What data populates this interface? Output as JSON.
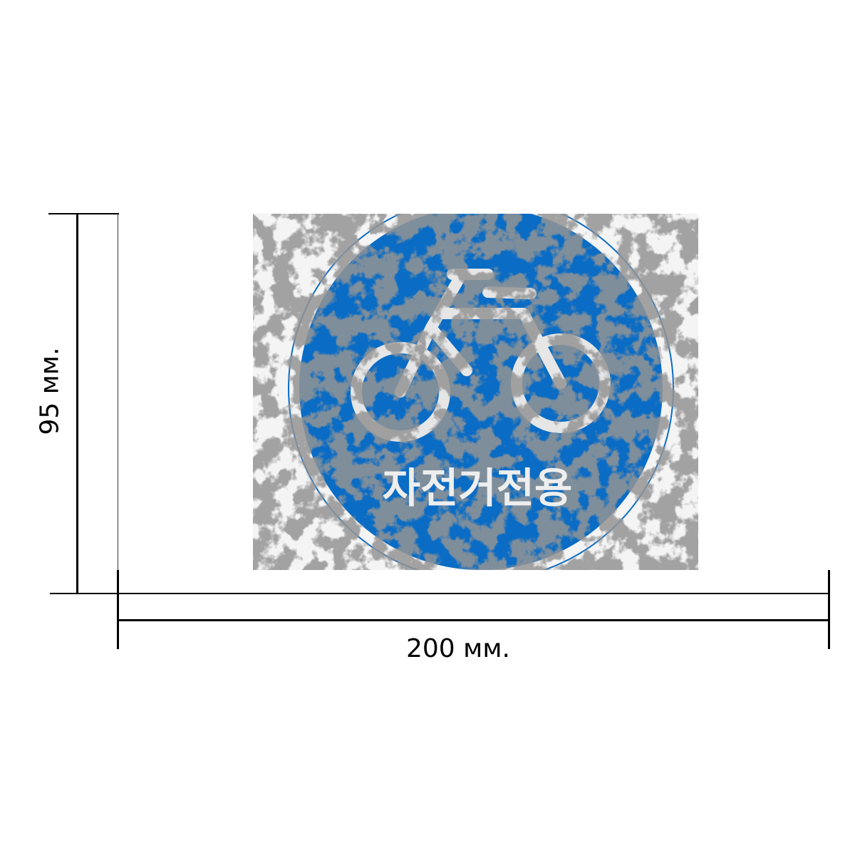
{
  "dimensions": {
    "height_label": "95 мм.",
    "width_label": "200 мм."
  },
  "sign": {
    "text": "자전거전용",
    "icon": "bicycle-icon",
    "colors": {
      "blue": "#0a6cc4",
      "weathering": "#5a5a5a",
      "symbol": "#f2f2f2"
    }
  }
}
